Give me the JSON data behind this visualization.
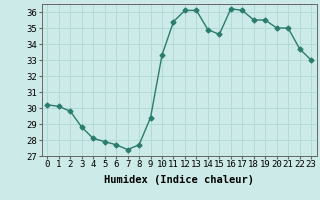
{
  "x": [
    0,
    1,
    2,
    3,
    4,
    5,
    6,
    7,
    8,
    9,
    10,
    11,
    12,
    13,
    14,
    15,
    16,
    17,
    18,
    19,
    20,
    21,
    22,
    23
  ],
  "y": [
    30.2,
    30.1,
    29.8,
    28.8,
    28.1,
    27.9,
    27.7,
    27.4,
    27.7,
    29.4,
    33.3,
    35.4,
    36.1,
    36.1,
    34.9,
    34.6,
    36.2,
    36.1,
    35.5,
    35.5,
    35.0,
    35.0,
    33.7,
    33.0
  ],
  "line_color": "#2a7d6e",
  "marker": "D",
  "marker_size": 2.5,
  "bg_color": "#cceae7",
  "grid_color": "#b0d8d4",
  "xlabel": "Humidex (Indice chaleur)",
  "ylim": [
    27,
    36.5
  ],
  "yticks": [
    27,
    28,
    29,
    30,
    31,
    32,
    33,
    34,
    35,
    36
  ],
  "xlim": [
    -0.5,
    23.5
  ],
  "xticks": [
    0,
    1,
    2,
    3,
    4,
    5,
    6,
    7,
    8,
    9,
    10,
    11,
    12,
    13,
    14,
    15,
    16,
    17,
    18,
    19,
    20,
    21,
    22,
    23
  ],
  "tick_fontsize": 6.5,
  "label_fontsize": 7.5
}
